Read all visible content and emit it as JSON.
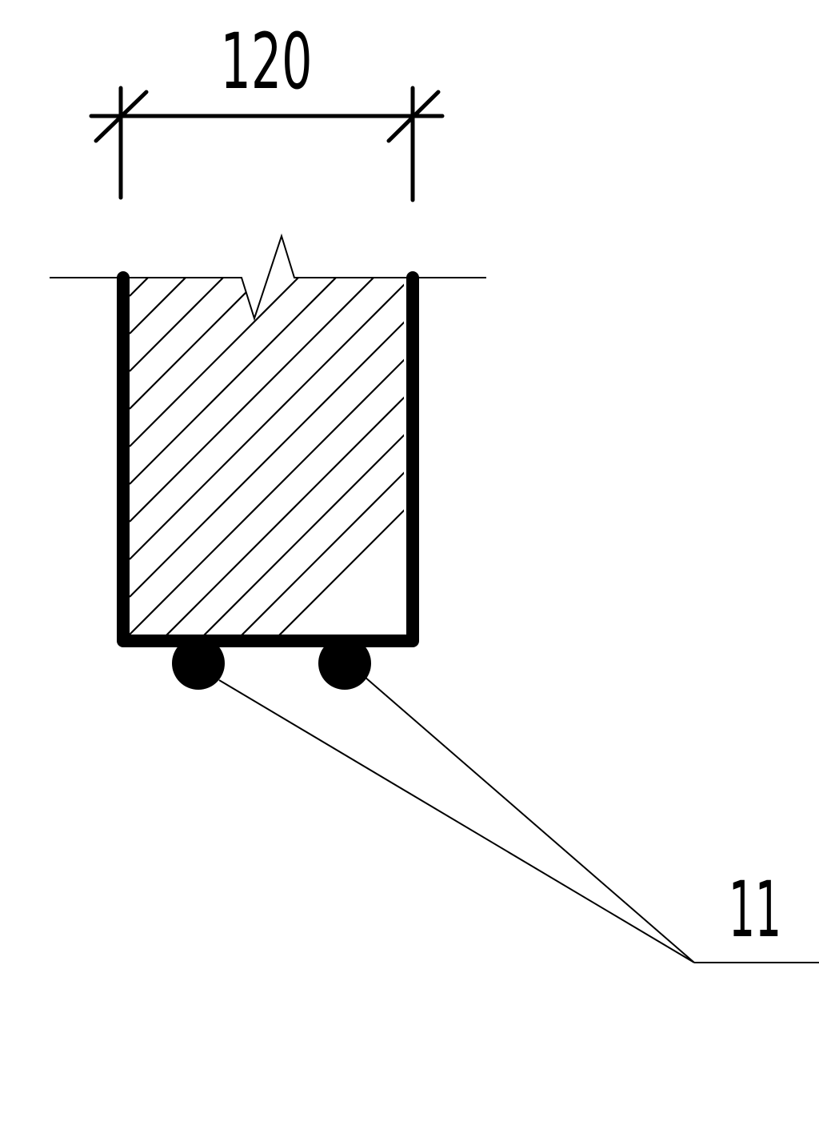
{
  "dimension": {
    "label": "120"
  },
  "callout": {
    "label": "11"
  },
  "colors": {
    "line": "#000000",
    "background": "#ffffff"
  }
}
